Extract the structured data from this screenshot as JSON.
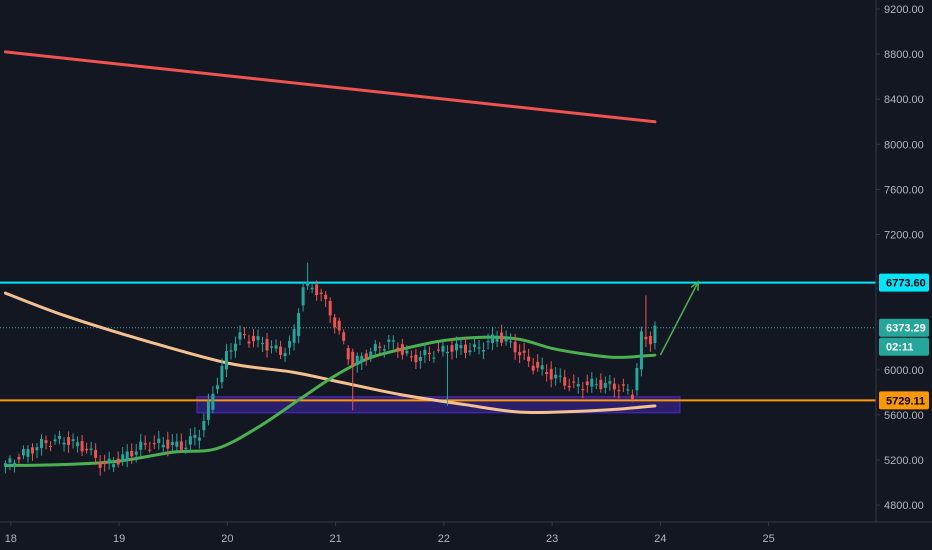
{
  "chart_data": {
    "type": "candlestick",
    "title": "",
    "xlabel": "",
    "ylabel": "",
    "ylim": [
      4650,
      9280
    ],
    "xlim": [
      17.9,
      26.5
    ],
    "grid": false,
    "y_ticks": [
      {
        "value": 9200,
        "label": "9200.00"
      },
      {
        "value": 8800,
        "label": "8800.00"
      },
      {
        "value": 8400,
        "label": "8400.00"
      },
      {
        "value": 8000,
        "label": "8000.00"
      },
      {
        "value": 7600,
        "label": "7600.00"
      },
      {
        "value": 7200,
        "label": "7200.00"
      },
      {
        "value": 6000,
        "label": "6000.00"
      },
      {
        "value": 5600,
        "label": "5600.00"
      },
      {
        "value": 5200,
        "label": "5200.00"
      },
      {
        "value": 4800,
        "label": "4800.00"
      }
    ],
    "x_ticks": [
      {
        "value": 18,
        "label": "18"
      },
      {
        "value": 19,
        "label": "19"
      },
      {
        "value": 20,
        "label": "20"
      },
      {
        "value": 21,
        "label": "21"
      },
      {
        "value": 22,
        "label": "22"
      },
      {
        "value": 23,
        "label": "23"
      },
      {
        "value": 24,
        "label": "24"
      },
      {
        "value": 25,
        "label": "25"
      }
    ],
    "price_waypoints": [
      [
        17.95,
        5150
      ],
      [
        18.1,
        5250
      ],
      [
        18.3,
        5350
      ],
      [
        18.5,
        5380
      ],
      [
        18.7,
        5300
      ],
      [
        18.85,
        5150
      ],
      [
        19.0,
        5200
      ],
      [
        19.2,
        5320
      ],
      [
        19.4,
        5350
      ],
      [
        19.6,
        5320
      ],
      [
        19.75,
        5450
      ],
      [
        19.85,
        5750
      ],
      [
        20.0,
        6150
      ],
      [
        20.1,
        6300
      ],
      [
        20.3,
        6250
      ],
      [
        20.5,
        6150
      ],
      [
        20.6,
        6250
      ],
      [
        20.7,
        6750
      ],
      [
        20.85,
        6700
      ],
      [
        21.0,
        6400
      ],
      [
        21.15,
        6050
      ],
      [
        21.3,
        6150
      ],
      [
        21.5,
        6250
      ],
      [
        21.7,
        6100
      ],
      [
        21.9,
        6150
      ],
      [
        22.1,
        6200
      ],
      [
        22.3,
        6180
      ],
      [
        22.5,
        6300
      ],
      [
        22.65,
        6200
      ],
      [
        22.8,
        6050
      ],
      [
        23.0,
        5950
      ],
      [
        23.2,
        5850
      ],
      [
        23.4,
        5880
      ],
      [
        23.6,
        5850
      ],
      [
        23.75,
        5780
      ],
      [
        23.82,
        6300
      ],
      [
        23.9,
        6250
      ],
      [
        23.95,
        6380
      ]
    ],
    "notable_highs": [
      [
        20.73,
        6950
      ],
      [
        23.85,
        6660
      ]
    ],
    "notable_lows": [
      [
        21.15,
        5640
      ],
      [
        22.05,
        5680
      ]
    ],
    "series": [
      {
        "name": "",
        "color": "#ef5350",
        "values": [
          [
            17.95,
            8820
          ],
          [
            23.95,
            8200
          ]
        ]
      },
      {
        "name": "",
        "color": "#f5c090",
        "values": [
          [
            17.95,
            6680
          ],
          [
            18.5,
            6480
          ],
          [
            19.2,
            6270
          ],
          [
            20.0,
            6060
          ],
          [
            20.6,
            5980
          ],
          [
            21.0,
            5900
          ],
          [
            21.6,
            5780
          ],
          [
            22.2,
            5690
          ],
          [
            22.7,
            5625
          ],
          [
            23.2,
            5630
          ],
          [
            23.6,
            5650
          ],
          [
            23.95,
            5680
          ]
        ]
      },
      {
        "name": "",
        "color": "#4caf50",
        "values": [
          [
            17.95,
            5150
          ],
          [
            18.5,
            5160
          ],
          [
            19.0,
            5190
          ],
          [
            19.5,
            5270
          ],
          [
            19.9,
            5300
          ],
          [
            20.3,
            5500
          ],
          [
            20.7,
            5760
          ],
          [
            21.0,
            5950
          ],
          [
            21.3,
            6100
          ],
          [
            21.6,
            6180
          ],
          [
            22.0,
            6260
          ],
          [
            22.4,
            6290
          ],
          [
            22.7,
            6270
          ],
          [
            23.0,
            6190
          ],
          [
            23.3,
            6140
          ],
          [
            23.6,
            6110
          ],
          [
            23.95,
            6130
          ]
        ]
      }
    ],
    "horizontal_levels": [
      {
        "label": "6773.60",
        "value": 6773.6,
        "color": "#00e5ff",
        "bg": "#00e5ff",
        "text_color": "#000000"
      },
      {
        "label": "5729.11",
        "value": 5729.11,
        "color": "#ff9800",
        "bg": "#ff9800",
        "text_color": "#000000"
      }
    ],
    "last_price": {
      "label": "6373.29",
      "value": 6373.29,
      "color": "#26a69a",
      "text_color": "#ffffff"
    },
    "countdown": {
      "label": "02:11",
      "color": "#26a69a",
      "text_color": "#ffffff"
    },
    "zone": {
      "x0": 19.72,
      "x1": 24.18,
      "y0": 5620,
      "y1": 5760,
      "color": "#3f27a8"
    },
    "arrow": {
      "from": [
        24.0,
        6130
      ],
      "to": [
        24.35,
        6780
      ],
      "color": "#4caf50"
    },
    "colors": {
      "background": "#131722",
      "up": "#26a69a",
      "down": "#ef5350",
      "axis_text": "#b2b5be",
      "axis_border": "#363a45"
    }
  }
}
